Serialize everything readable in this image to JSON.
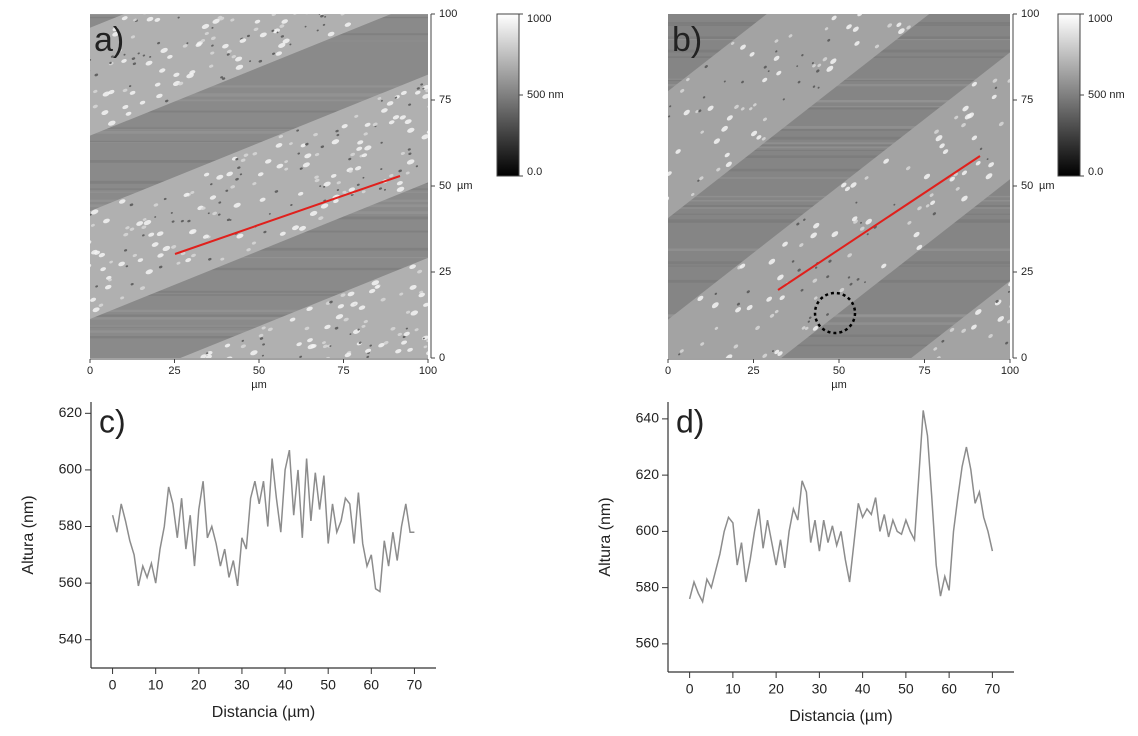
{
  "chart_data": [
    {
      "type": "image",
      "title": "a)",
      "x_label": "µm",
      "y_label": "µm",
      "xlim": [
        0,
        100
      ],
      "xticks": [
        0,
        25,
        50,
        75,
        100
      ],
      "ylim": [
        0,
        100
      ],
      "yticks": [
        0,
        25,
        50,
        75,
        100
      ],
      "colorbar": {
        "lim": [
          0,
          1000
        ],
        "ticks": [
          {
            "value": 0,
            "label": "0.0"
          },
          {
            "value": 500,
            "label": "500 nm"
          },
          1000
        ]
      }
    },
    {
      "type": "image",
      "title": "b)",
      "x_label": "µm",
      "y_label": "µm",
      "xlim": [
        0,
        100
      ],
      "xticks": [
        0,
        25,
        50,
        75,
        100
      ],
      "ylim": [
        0,
        100
      ],
      "yticks": [
        0,
        25,
        50,
        75,
        100
      ],
      "colorbar": {
        "lim": [
          0,
          1000
        ],
        "ticks": [
          {
            "value": 0,
            "label": "0.0"
          },
          {
            "value": 500,
            "label": "500 nm"
          },
          1000
        ]
      }
    },
    {
      "type": "line",
      "title": "c)",
      "x_label": "Distancia (µm)",
      "y_label": "Altura (nm)",
      "color": "#8c8c8c",
      "xlim": [
        -5,
        75
      ],
      "xticks": [
        0,
        10,
        20,
        30,
        40,
        50,
        60,
        70
      ],
      "ylim": [
        530,
        624
      ],
      "yticks": [
        540,
        560,
        580,
        600,
        620
      ],
      "x": [
        0,
        1,
        2,
        3,
        4,
        5,
        6,
        7,
        8,
        9,
        10,
        11,
        12,
        13,
        14,
        15,
        16,
        17,
        18,
        19,
        20,
        21,
        22,
        23,
        24,
        25,
        26,
        27,
        28,
        29,
        30,
        31,
        32,
        33,
        34,
        35,
        36,
        37,
        38,
        39,
        40,
        41,
        42,
        43,
        44,
        45,
        46,
        47,
        48,
        49,
        50,
        51,
        52,
        53,
        54,
        55,
        56,
        57,
        58,
        59,
        60,
        61,
        62,
        63,
        64,
        65,
        66,
        67,
        68,
        69,
        70
      ],
      "values": [
        584,
        578,
        588,
        582,
        575,
        570,
        559,
        566,
        562,
        567,
        560,
        572,
        580,
        594,
        588,
        576,
        590,
        572,
        584,
        566,
        586,
        596,
        576,
        580,
        574,
        566,
        572,
        562,
        568,
        559,
        576,
        572,
        590,
        596,
        588,
        596,
        580,
        604,
        590,
        578,
        600,
        607,
        584,
        600,
        576,
        604,
        582,
        599,
        586,
        598,
        574,
        588,
        578,
        582,
        590,
        588,
        574,
        592,
        574,
        566,
        570,
        558,
        557,
        575,
        566,
        578,
        568,
        580,
        588,
        578,
        578
      ]
    },
    {
      "type": "line",
      "title": "d)",
      "x_label": "Distancia (µm)",
      "y_label": "Altura (nm)",
      "color": "#8c8c8c",
      "xlim": [
        -5,
        75
      ],
      "xticks": [
        0,
        10,
        20,
        30,
        40,
        50,
        60,
        70
      ],
      "ylim": [
        550,
        646
      ],
      "yticks": [
        560,
        580,
        600,
        620,
        640
      ],
      "x": [
        0,
        1,
        2,
        3,
        4,
        5,
        6,
        7,
        8,
        9,
        10,
        11,
        12,
        13,
        14,
        15,
        16,
        17,
        18,
        19,
        20,
        21,
        22,
        23,
        24,
        25,
        26,
        27,
        28,
        29,
        30,
        31,
        32,
        33,
        34,
        35,
        36,
        37,
        38,
        39,
        40,
        41,
        42,
        43,
        44,
        45,
        46,
        47,
        48,
        49,
        50,
        51,
        52,
        53,
        54,
        55,
        56,
        57,
        58,
        59,
        60,
        61,
        62,
        63,
        64,
        65,
        66,
        67,
        68,
        69,
        70
      ],
      "values": [
        576,
        582,
        578,
        575,
        583,
        580,
        586,
        592,
        600,
        605,
        603,
        588,
        596,
        582,
        590,
        600,
        608,
        594,
        604,
        596,
        588,
        597,
        587,
        600,
        608,
        604,
        618,
        614,
        596,
        604,
        593,
        604,
        596,
        602,
        595,
        600,
        590,
        582,
        596,
        610,
        605,
        608,
        606,
        612,
        600,
        606,
        598,
        604,
        600,
        599,
        604,
        600,
        597,
        620,
        643,
        634,
        612,
        588,
        577,
        584,
        579,
        600,
        612,
        623,
        630,
        622,
        610,
        614,
        605,
        600,
        593
      ]
    }
  ]
}
